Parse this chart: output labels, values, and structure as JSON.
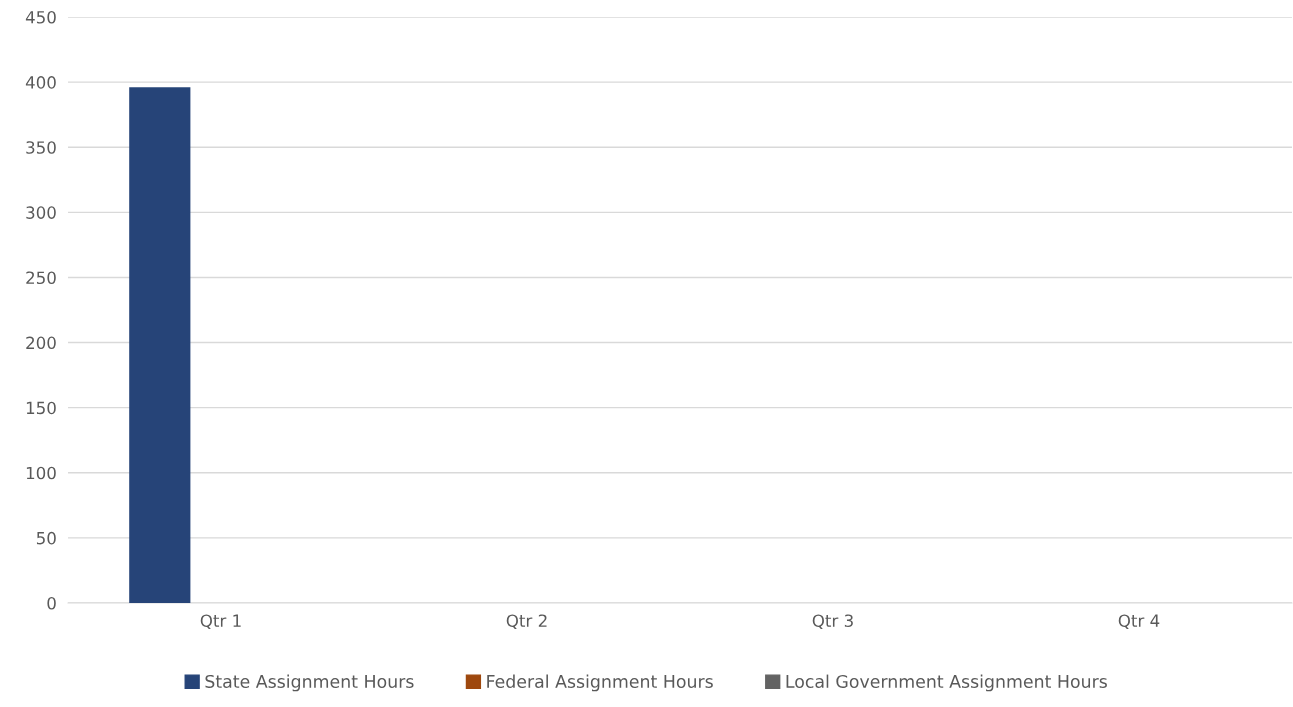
{
  "chart_data": {
    "type": "bar",
    "categories": [
      "Qtr 1",
      "Qtr 2",
      "Qtr 3",
      "Qtr 4"
    ],
    "series": [
      {
        "name": "State Assignment Hours",
        "color": "#264478",
        "values": [
          396,
          0,
          0,
          0
        ]
      },
      {
        "name": "Federal Assignment Hours",
        "color": "#9e480e",
        "values": [
          0,
          0,
          0,
          0
        ]
      },
      {
        "name": "Local Government Assignment Hours",
        "color": "#636363",
        "values": [
          0,
          0,
          0,
          0
        ]
      }
    ],
    "ylim": [
      0,
      450
    ],
    "yticks": [
      0,
      50,
      100,
      150,
      200,
      250,
      300,
      350,
      400,
      450
    ],
    "grid": "y",
    "legend": "bottom"
  }
}
